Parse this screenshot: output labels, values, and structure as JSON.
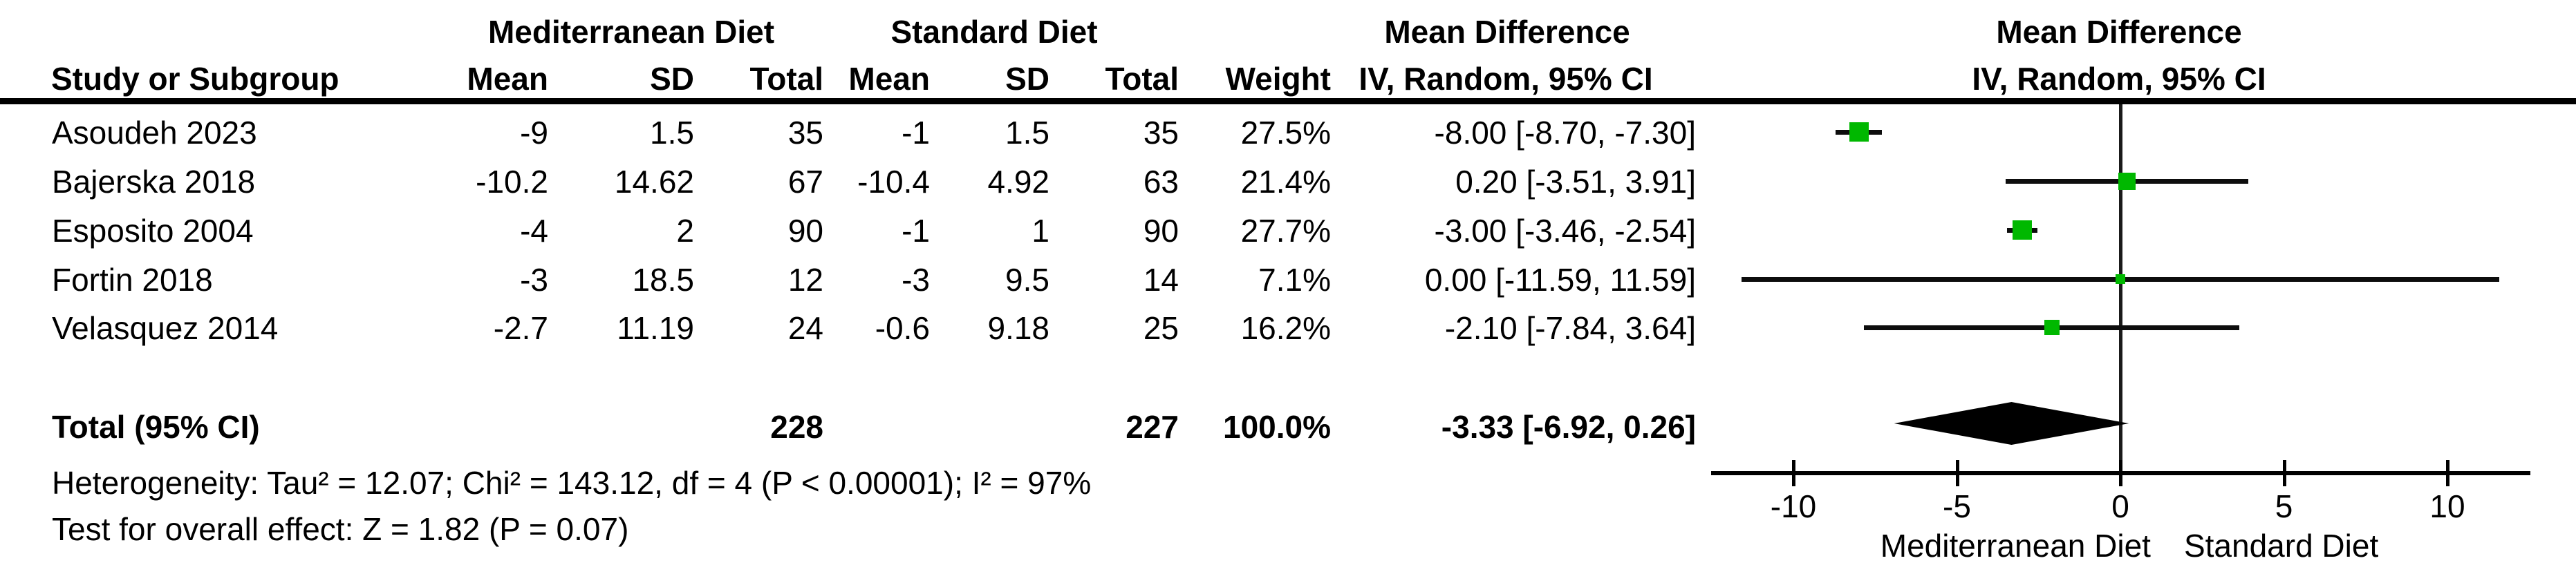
{
  "header": {
    "study_col": "Study or Subgroup",
    "group1": "Mediterranean Diet",
    "group2": "Standard Diet",
    "mean": "Mean",
    "sd": "SD",
    "total": "Total",
    "weight": "Weight",
    "md_title": "Mean Difference",
    "md_sub": "IV, Random, 95% CI",
    "plot_title": "Mean Difference",
    "plot_sub": "IV, Random, 95% CI"
  },
  "rows": [
    {
      "study": "Asoudeh 2023",
      "m_mean": "-9",
      "m_sd": "1.5",
      "m_total": "35",
      "s_mean": "-1",
      "s_sd": "1.5",
      "s_total": "35",
      "weight": "27.5%",
      "md": "-8.00 [-8.70, -7.30]"
    },
    {
      "study": "Bajerska 2018",
      "m_mean": "-10.2",
      "m_sd": "14.62",
      "m_total": "67",
      "s_mean": "-10.4",
      "s_sd": "4.92",
      "s_total": "63",
      "weight": "21.4%",
      "md": "0.20 [-3.51, 3.91]"
    },
    {
      "study": "Esposito 2004",
      "m_mean": "-4",
      "m_sd": "2",
      "m_total": "90",
      "s_mean": "-1",
      "s_sd": "1",
      "s_total": "90",
      "weight": "27.7%",
      "md": "-3.00 [-3.46, -2.54]"
    },
    {
      "study": "Fortin 2018",
      "m_mean": "-3",
      "m_sd": "18.5",
      "m_total": "12",
      "s_mean": "-3",
      "s_sd": "9.5",
      "s_total": "14",
      "weight": "7.1%",
      "md": "0.00 [-11.59, 11.59]"
    },
    {
      "study": "Velasquez 2014",
      "m_mean": "-2.7",
      "m_sd": "11.19",
      "m_total": "24",
      "s_mean": "-0.6",
      "s_sd": "9.18",
      "s_total": "25",
      "weight": "16.2%",
      "md": "-2.10 [-7.84, 3.64]"
    }
  ],
  "total_row": {
    "label": "Total (95% CI)",
    "m_total": "228",
    "s_total": "227",
    "weight": "100.0%",
    "md": "-3.33 [-6.92, 0.26]"
  },
  "footnotes": {
    "heterogeneity": "Heterogeneity: Tau² = 12.07; Chi² = 143.12, df = 4 (P < 0.00001); I² = 97%",
    "overall_effect": "Test for overall effect: Z = 1.82 (P = 0.07)"
  },
  "axis_group_labels": {
    "left": "Mediterranean Diet",
    "right": "Standard Diet"
  },
  "colors": {
    "marker_green": "#00b800",
    "ci_black": "#0d0d0d"
  },
  "chart_data": {
    "type": "forest",
    "title": "Mean Difference, IV, Random, 95% CI",
    "studies": [
      {
        "name": "Asoudeh 2023",
        "md": -8.0,
        "ci_low": -8.7,
        "ci_high": -7.3,
        "weight_pct": 27.5
      },
      {
        "name": "Bajerska 2018",
        "md": 0.2,
        "ci_low": -3.51,
        "ci_high": 3.91,
        "weight_pct": 21.4
      },
      {
        "name": "Esposito 2004",
        "md": -3.0,
        "ci_low": -3.46,
        "ci_high": -2.54,
        "weight_pct": 27.7
      },
      {
        "name": "Fortin 2018",
        "md": 0.0,
        "ci_low": -11.59,
        "ci_high": 11.59,
        "weight_pct": 7.1
      },
      {
        "name": "Velasquez 2014",
        "md": -2.1,
        "ci_low": -7.84,
        "ci_high": 3.64,
        "weight_pct": 16.2
      }
    ],
    "total": {
      "md": -3.33,
      "ci_low": -6.92,
      "ci_high": 0.26,
      "total_n_med": 228,
      "total_n_std": 227,
      "weight_pct": 100.0
    },
    "axis": {
      "ticks": [
        -10,
        -5,
        0,
        5,
        10
      ],
      "xlim": [
        -12.5,
        12.6
      ],
      "favours_left": "Mediterranean Diet",
      "favours_right": "Standard Diet"
    }
  }
}
